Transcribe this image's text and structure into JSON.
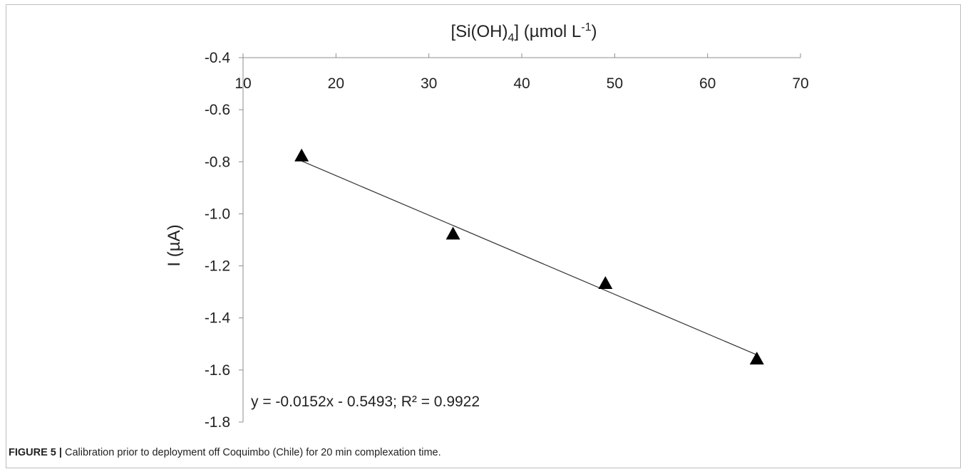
{
  "caption": {
    "label": "FIGURE 5 |",
    "text": " Calibration prior to deployment off Coquimbo (Chile) for 20 min complexation time."
  },
  "chart_data": {
    "type": "scatter",
    "title": "",
    "xlabel": "[Si(OH)4] (µmol L-1)",
    "xlabel_parts": {
      "main": "[Si(OH)",
      "sub": "4",
      "after": "] (µmol L",
      "sup": "-1",
      "close": ")"
    },
    "ylabel": "I (µA)",
    "xlim": [
      10,
      70
    ],
    "ylim": [
      -1.8,
      -0.4
    ],
    "x_axis_position": "top",
    "x_ticks": [
      "10",
      "20",
      "30",
      "40",
      "50",
      "60",
      "70"
    ],
    "x_tick_values": [
      10,
      20,
      30,
      40,
      50,
      60,
      70
    ],
    "y_ticks": [
      "-0.4",
      "-0.6",
      "-0.8",
      "-1.0",
      "-1.2",
      "-1.4",
      "-1.6",
      "-1.8"
    ],
    "y_tick_values": [
      -0.4,
      -0.6,
      -0.8,
      -1.0,
      -1.2,
      -1.4,
      -1.6,
      -1.8
    ],
    "grid": false,
    "series": [
      {
        "marker": "triangle",
        "color": "#000000",
        "x": [
          16.3,
          32.6,
          49.0,
          65.3
        ],
        "y": [
          -0.78,
          -1.08,
          -1.27,
          -1.56
        ]
      }
    ],
    "trendline": {
      "slope": -0.0152,
      "intercept": -0.5493,
      "x_range": [
        16.3,
        65.3
      ],
      "color": "#333333"
    },
    "annotation": "y = -0.0152x - 0.5493; R² = 0.9922"
  }
}
